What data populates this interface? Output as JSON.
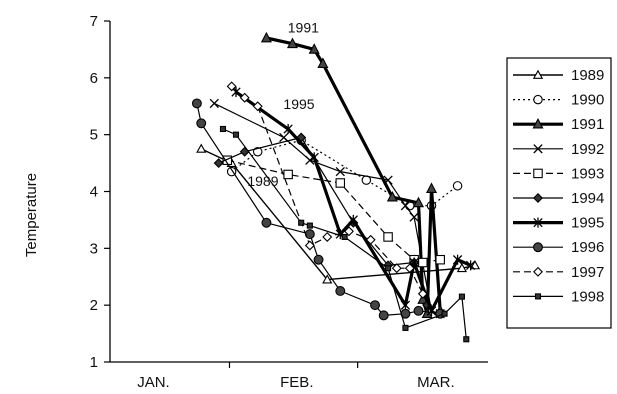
{
  "chart_data": {
    "type": "line",
    "title": "",
    "ylabel": "Temperature",
    "xlabel": "",
    "x_ticks": [
      "JAN.",
      "FEB.",
      "MAR."
    ],
    "x_tick_days": [
      0,
      31,
      59
    ],
    "ylim": [
      1,
      7
    ],
    "y_ticks": [
      "1",
      "2",
      "3",
      "4",
      "5",
      "6",
      "7"
    ],
    "xlim_days": [
      -12,
      75
    ],
    "grid": false,
    "legend_position": "right",
    "annotations": [
      {
        "text": "1991",
        "x": 32.5,
        "y": 6.8
      },
      {
        "text": "1995",
        "x": 31.5,
        "y": 5.45
      },
      {
        "text": "1989",
        "x": 23.2,
        "y": 4.1
      }
    ],
    "series": [
      {
        "name": "1989",
        "marker": "triangle-open",
        "dash": "solid",
        "width": 1.4,
        "points": [
          [
            9,
            4.75
          ],
          [
            16,
            4.5
          ],
          [
            38,
            2.45
          ],
          [
            69,
            2.65
          ],
          [
            72,
            2.7
          ]
        ]
      },
      {
        "name": "1990",
        "marker": "circle-open",
        "dash": "dot",
        "width": 1.2,
        "points": [
          [
            16,
            4.35
          ],
          [
            22,
            4.7
          ],
          [
            32,
            4.9
          ],
          [
            47,
            4.2
          ],
          [
            57,
            3.75
          ],
          [
            62,
            3.75
          ],
          [
            68,
            4.1
          ]
        ]
      },
      {
        "name": "1991",
        "marker": "triangle-filled",
        "dash": "solid",
        "width": 3.2,
        "points": [
          [
            24,
            6.7
          ],
          [
            30,
            6.6
          ],
          [
            35,
            6.5
          ],
          [
            37,
            6.25
          ],
          [
            53,
            3.9
          ],
          [
            59,
            3.8
          ],
          [
            60,
            2.1
          ],
          [
            61,
            1.85
          ],
          [
            62,
            4.05
          ],
          [
            64,
            1.9
          ]
        ]
      },
      {
        "name": "1992",
        "marker": "x",
        "dash": "solid",
        "width": 1.2,
        "points": [
          [
            12,
            5.55
          ],
          [
            28,
            4.95
          ],
          [
            34,
            4.55
          ],
          [
            41,
            4.35
          ],
          [
            52,
            4.2
          ],
          [
            56,
            3.75
          ],
          [
            58,
            3.55
          ],
          [
            62,
            1.9
          ],
          [
            64,
            1.85
          ]
        ]
      },
      {
        "name": "1993",
        "marker": "square-open",
        "dash": "dash",
        "width": 1.2,
        "points": [
          [
            15,
            4.55
          ],
          [
            29,
            4.3
          ],
          [
            41,
            4.15
          ],
          [
            52,
            3.2
          ],
          [
            58,
            2.8
          ],
          [
            60,
            2.75
          ],
          [
            64,
            2.8
          ]
        ]
      },
      {
        "name": "1994",
        "marker": "diamond-filled",
        "dash": "solid",
        "width": 1.2,
        "points": [
          [
            13,
            4.5
          ],
          [
            19,
            4.7
          ],
          [
            32,
            4.95
          ],
          [
            44,
            3.45
          ],
          [
            52,
            2.7
          ],
          [
            58,
            2.75
          ],
          [
            61,
            2.0
          ]
        ]
      },
      {
        "name": "1995",
        "marker": "asterisk",
        "dash": "solid",
        "width": 3.2,
        "points": [
          [
            17,
            5.75
          ],
          [
            29,
            5.1
          ],
          [
            35,
            4.6
          ],
          [
            41,
            3.25
          ],
          [
            44,
            3.5
          ],
          [
            56,
            2.0
          ],
          [
            58,
            2.75
          ],
          [
            62,
            1.9
          ],
          [
            68,
            2.8
          ],
          [
            71,
            2.7
          ]
        ]
      },
      {
        "name": "1996",
        "marker": "circle-filled",
        "dash": "solid",
        "width": 1.2,
        "points": [
          [
            8,
            5.55
          ],
          [
            9,
            5.2
          ],
          [
            24,
            3.45
          ],
          [
            34,
            3.25
          ],
          [
            36,
            2.8
          ],
          [
            41,
            2.25
          ],
          [
            49,
            2.0
          ],
          [
            51,
            1.82
          ],
          [
            56,
            1.85
          ],
          [
            59,
            1.9
          ],
          [
            64,
            1.85
          ]
        ]
      },
      {
        "name": "1997",
        "marker": "diamond-open",
        "dash": "dash",
        "width": 1.2,
        "points": [
          [
            16,
            5.85
          ],
          [
            19,
            5.65
          ],
          [
            22,
            5.5
          ],
          [
            34,
            3.05
          ],
          [
            38,
            3.2
          ],
          [
            43,
            3.3
          ],
          [
            48,
            3.15
          ],
          [
            54,
            2.65
          ],
          [
            57,
            2.65
          ],
          [
            60,
            2.2
          ]
        ]
      },
      {
        "name": "1998",
        "marker": "square-filled",
        "dash": "solid",
        "width": 1.2,
        "points": [
          [
            14,
            5.1
          ],
          [
            17,
            5.0
          ],
          [
            32,
            3.45
          ],
          [
            34,
            3.4
          ],
          [
            42,
            3.2
          ],
          [
            52,
            2.65
          ],
          [
            56,
            1.6
          ],
          [
            65,
            1.85
          ],
          [
            69,
            2.15
          ],
          [
            70,
            1.4
          ]
        ]
      }
    ]
  }
}
